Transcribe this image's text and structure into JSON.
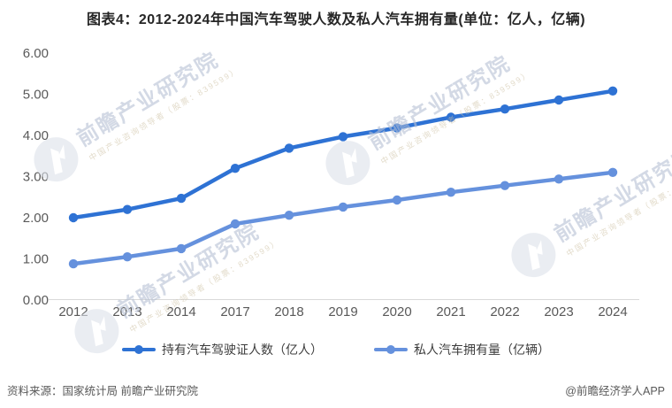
{
  "title": "图表4：2012-2024年中国汽车驾驶人数及私人汽车拥有量(单位：亿人，亿辆)",
  "chart_data": {
    "type": "line",
    "x": [
      "2012",
      "2013",
      "2014",
      "2017",
      "2018",
      "2019",
      "2020",
      "2021",
      "2022",
      "2023",
      "2024"
    ],
    "series": [
      {
        "name": "持有汽车驾驶证人数（亿人）",
        "color": "#2e72d4",
        "values": [
          2.0,
          2.2,
          2.47,
          3.2,
          3.69,
          3.97,
          4.18,
          4.44,
          4.64,
          4.86,
          5.08
        ]
      },
      {
        "name": "私人汽车拥有量（亿辆）",
        "color": "#6591dd",
        "values": [
          0.88,
          1.05,
          1.25,
          1.85,
          2.06,
          2.26,
          2.43,
          2.62,
          2.78,
          2.94,
          3.1
        ]
      }
    ],
    "ylim": [
      0,
      6
    ],
    "ytick_labels": [
      "0.00",
      "1.00",
      "2.00",
      "3.00",
      "4.00",
      "5.00",
      "6.00"
    ],
    "grid": false,
    "legend_position": "bottom",
    "axis_line_color": "#d9d9d9"
  },
  "watermark": {
    "text": "前瞻产业研究院",
    "subtext": "中国产业咨询领导者（股票：839599）"
  },
  "footer": {
    "source": "资料来源：国家统计局 前瞻产业研究院",
    "credit": "@前瞻经济学人APP"
  }
}
